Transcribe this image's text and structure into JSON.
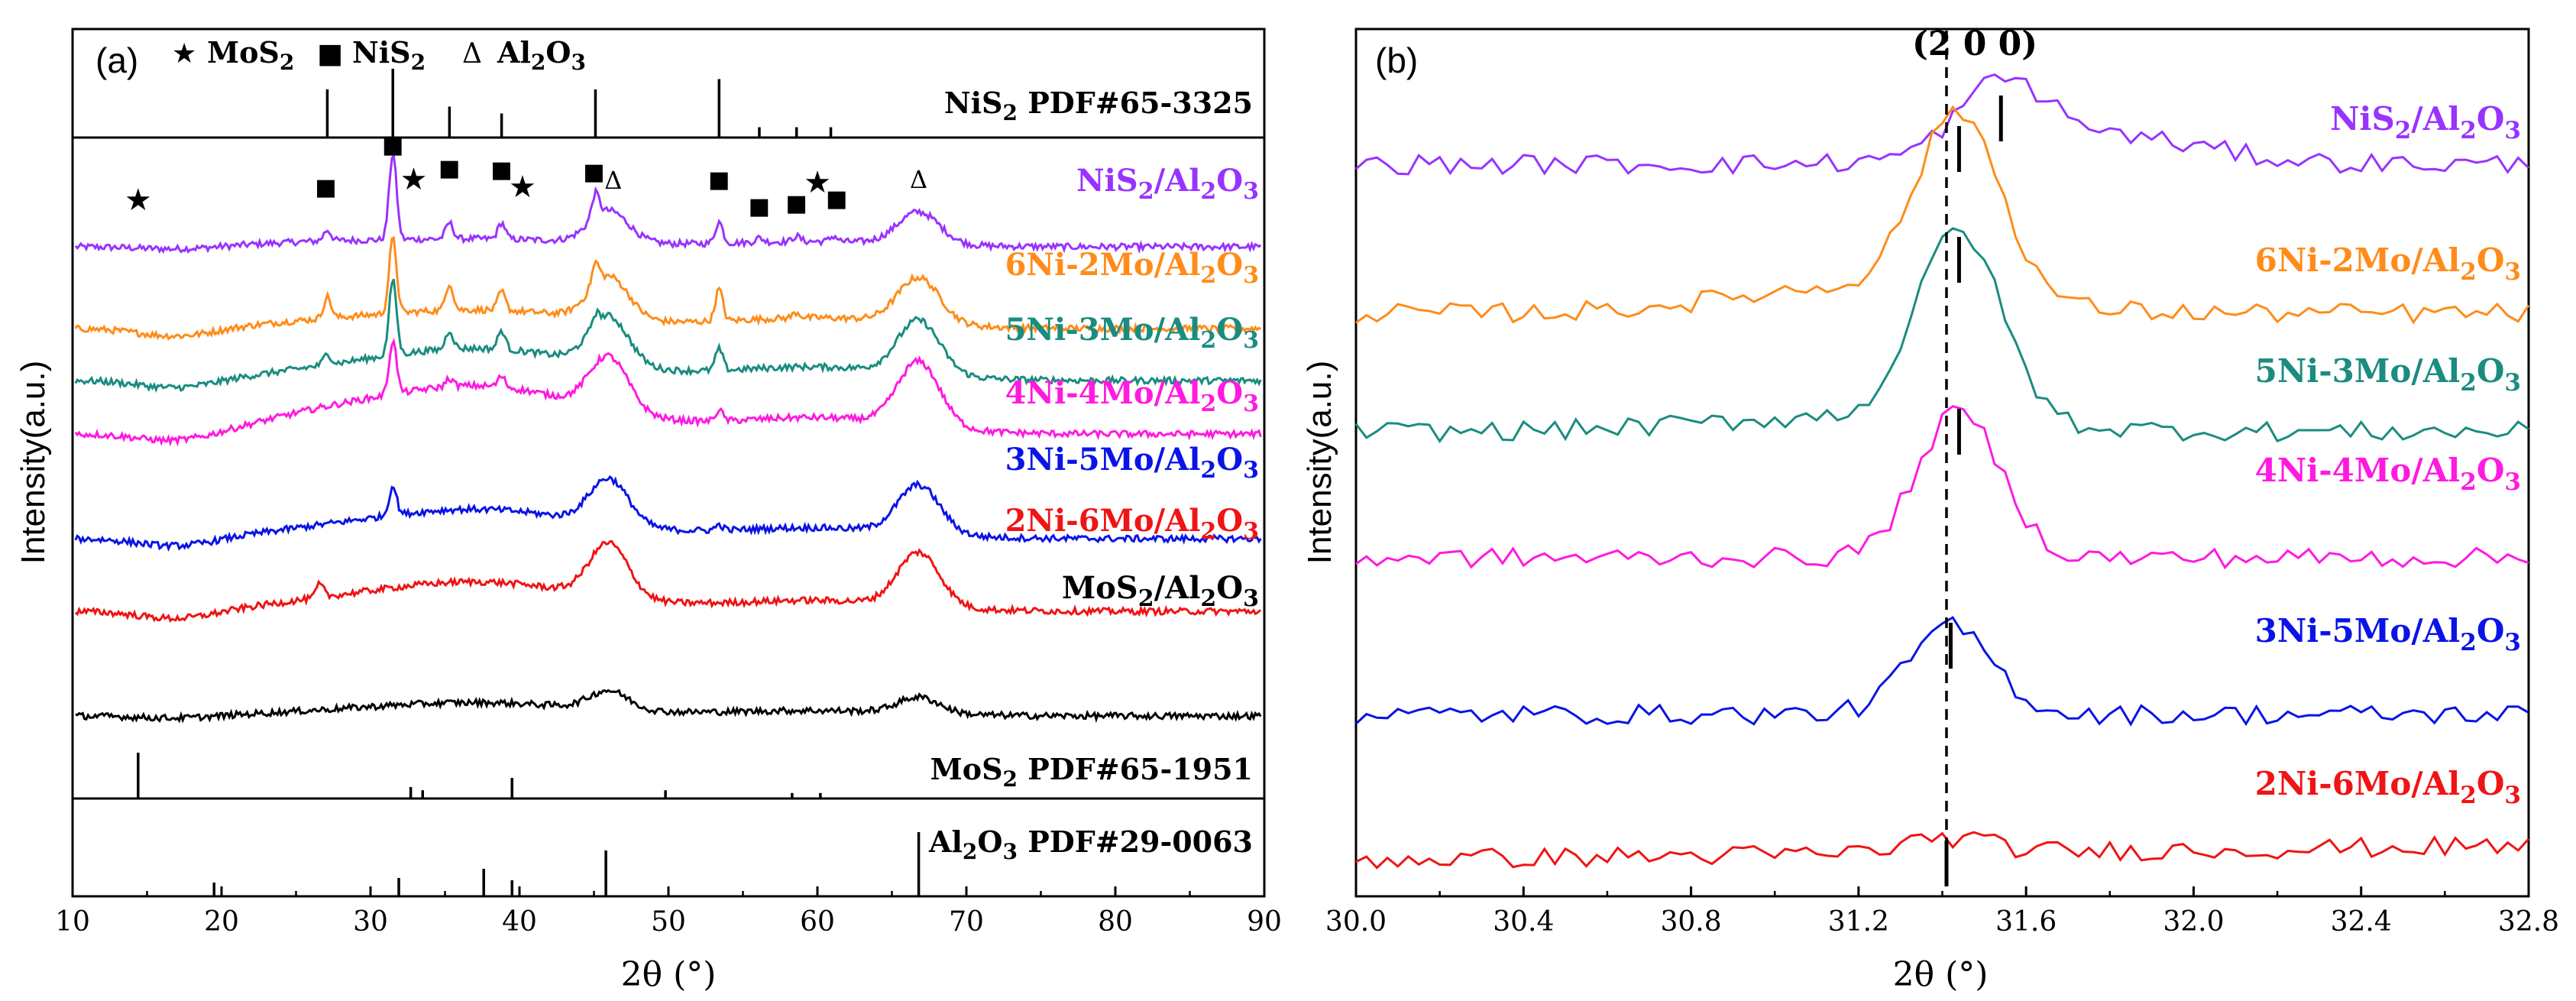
{
  "chart_data": [
    {
      "panel": "(a)",
      "type": "line",
      "xlabel": "2θ (°)",
      "ylabel": "Intensity(a.u.)",
      "xlim": [
        10,
        90
      ],
      "xticks": [
        10,
        20,
        30,
        40,
        50,
        60,
        70,
        80,
        90
      ],
      "legend": [
        {
          "symbol": "★",
          "label": "MoS2"
        },
        {
          "symbol": "■",
          "label": "NiS2"
        },
        {
          "symbol": "Δ",
          "label": "Al2O3"
        }
      ],
      "references": [
        {
          "name": "NiS2 PDF#65-3325",
          "position": "top",
          "peaks": [
            {
              "x": 27.1,
              "h": 0.7
            },
            {
              "x": 31.5,
              "h": 1.0
            },
            {
              "x": 35.3,
              "h": 0.45
            },
            {
              "x": 38.8,
              "h": 0.35
            },
            {
              "x": 45.1,
              "h": 0.7
            },
            {
              "x": 53.4,
              "h": 0.85
            },
            {
              "x": 56.1,
              "h": 0.15
            },
            {
              "x": 58.6,
              "h": 0.15
            },
            {
              "x": 60.9,
              "h": 0.15
            }
          ]
        },
        {
          "name": "MoS2 PDF#65-1951",
          "position": "middle",
          "peaks": [
            {
              "x": 14.4,
              "h": 1.0
            },
            {
              "x": 32.7,
              "h": 0.25
            },
            {
              "x": 33.5,
              "h": 0.18
            },
            {
              "x": 39.5,
              "h": 0.45
            },
            {
              "x": 49.8,
              "h": 0.18
            },
            {
              "x": 58.3,
              "h": 0.12
            },
            {
              "x": 60.2,
              "h": 0.12
            }
          ]
        },
        {
          "name": "Al2O3 PDF#29-0063",
          "position": "bottom",
          "peaks": [
            {
              "x": 19.5,
              "h": 0.3
            },
            {
              "x": 31.9,
              "h": 0.4
            },
            {
              "x": 37.6,
              "h": 0.6
            },
            {
              "x": 39.5,
              "h": 0.35
            },
            {
              "x": 45.8,
              "h": 1.0
            },
            {
              "x": 66.8,
              "h": 1.4
            }
          ]
        }
      ],
      "series": [
        {
          "name": "NiS2/Al2O3",
          "color": "#9933FF",
          "profile": "nis2"
        },
        {
          "name": "6Ni-2Mo/Al2O3",
          "color": "#FF8C1A",
          "profile": "6ni"
        },
        {
          "name": "5Ni-3Mo/Al2O3",
          "color": "#1A8C80",
          "profile": "5ni"
        },
        {
          "name": "4Ni-4Mo/Al2O3",
          "color": "#FF1AE0",
          "profile": "4ni"
        },
        {
          "name": "3Ni-5Mo/Al2O3",
          "color": "#0A14E6",
          "profile": "3ni"
        },
        {
          "name": "2Ni-6Mo/Al2O3",
          "color": "#F01414",
          "profile": "2ni"
        },
        {
          "name": "MoS2/Al2O3",
          "color": "#000000",
          "profile": "mos2"
        }
      ],
      "markers": [
        {
          "sym": "★",
          "x": 14.4
        },
        {
          "sym": "■",
          "x": 27.0
        },
        {
          "sym": "■",
          "x": 31.5
        },
        {
          "sym": "★",
          "x": 32.9
        },
        {
          "sym": "■",
          "x": 35.3
        },
        {
          "sym": "■",
          "x": 38.8
        },
        {
          "sym": "★",
          "x": 40.2
        },
        {
          "sym": "■",
          "x": 45.0
        },
        {
          "sym": "Δ",
          "x": 46.3
        },
        {
          "sym": "■",
          "x": 53.4
        },
        {
          "sym": "■",
          "x": 56.1
        },
        {
          "sym": "■",
          "x": 58.6
        },
        {
          "sym": "★",
          "x": 60.0
        },
        {
          "sym": "■",
          "x": 61.3
        },
        {
          "sym": "Δ",
          "x": 66.8
        }
      ]
    },
    {
      "panel": "(b)",
      "type": "line",
      "xlabel": "2θ (°)",
      "ylabel": "Intensity(a.u.)",
      "xlim": [
        30.0,
        32.8
      ],
      "xticks": [
        "30.0",
        "30.4",
        "30.8",
        "31.2",
        "31.6",
        "32.0",
        "32.4",
        "32.8"
      ],
      "annotation": "(2 0 0)",
      "reference_line_x": 31.41,
      "series": [
        {
          "name": "NiS2/Al2O3",
          "color": "#9933FF",
          "peak_x": 31.54
        },
        {
          "name": "6Ni-2Mo/Al2O3",
          "color": "#FF8C1A",
          "peak_x": 31.44
        },
        {
          "name": "5Ni-3Mo/Al2O3",
          "color": "#1A8C80",
          "peak_x": 31.44
        },
        {
          "name": "4Ni-4Mo/Al2O3",
          "color": "#FF1AE0",
          "peak_x": 31.44
        },
        {
          "name": "3Ni-5Mo/Al2O3",
          "color": "#0A14E6",
          "peak_x": 31.42
        },
        {
          "name": "2Ni-6Mo/Al2O3",
          "color": "#F01414",
          "peak_x": 31.41
        }
      ]
    }
  ]
}
